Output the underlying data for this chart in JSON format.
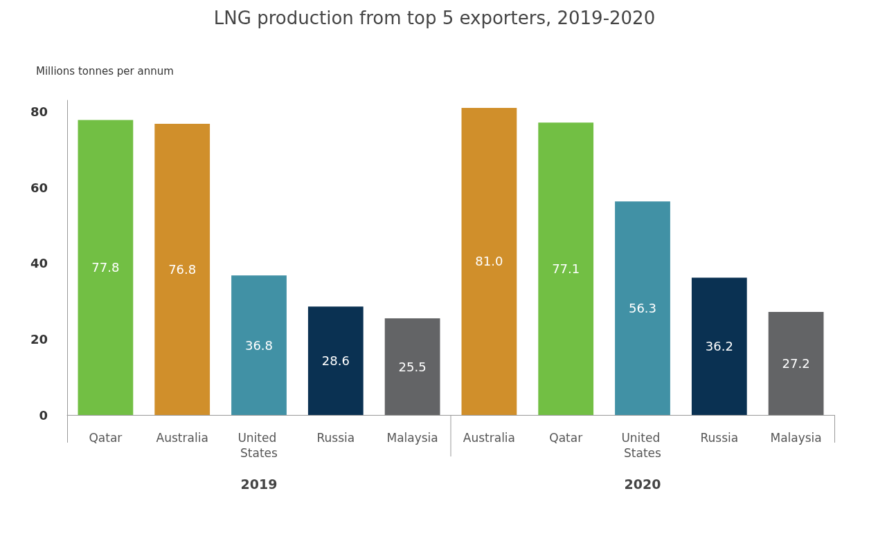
{
  "chart_data": {
    "type": "bar",
    "title": "LNG production from top 5 exporters, 2019-2020",
    "ylabel": "Millions tonnes per annum",
    "categories": [
      "Qatar",
      "Australia",
      "United States",
      "Russia",
      "Malaysia",
      "Australia",
      "Qatar",
      "United States",
      "Russia",
      "Malaysia"
    ],
    "values": [
      77.8,
      76.8,
      36.8,
      28.6,
      25.5,
      81.0,
      77.1,
      56.3,
      36.2,
      27.2
    ],
    "value_labels": [
      "77.8",
      "76.8",
      "36.8",
      "28.6",
      "25.5",
      "81.0",
      "77.1",
      "56.3",
      "36.2",
      "27.2"
    ],
    "colors": [
      "#72bf44",
      "#d08f2b",
      "#4191a5",
      "#0a3152",
      "#636466",
      "#d08f2b",
      "#72bf44",
      "#4191a5",
      "#0a3152",
      "#636466"
    ],
    "annotations": [
      "2019",
      "2020"
    ],
    "ylim": [
      0,
      83
    ],
    "yticks": [
      0,
      20,
      40,
      60,
      80
    ],
    "grid": false
  }
}
